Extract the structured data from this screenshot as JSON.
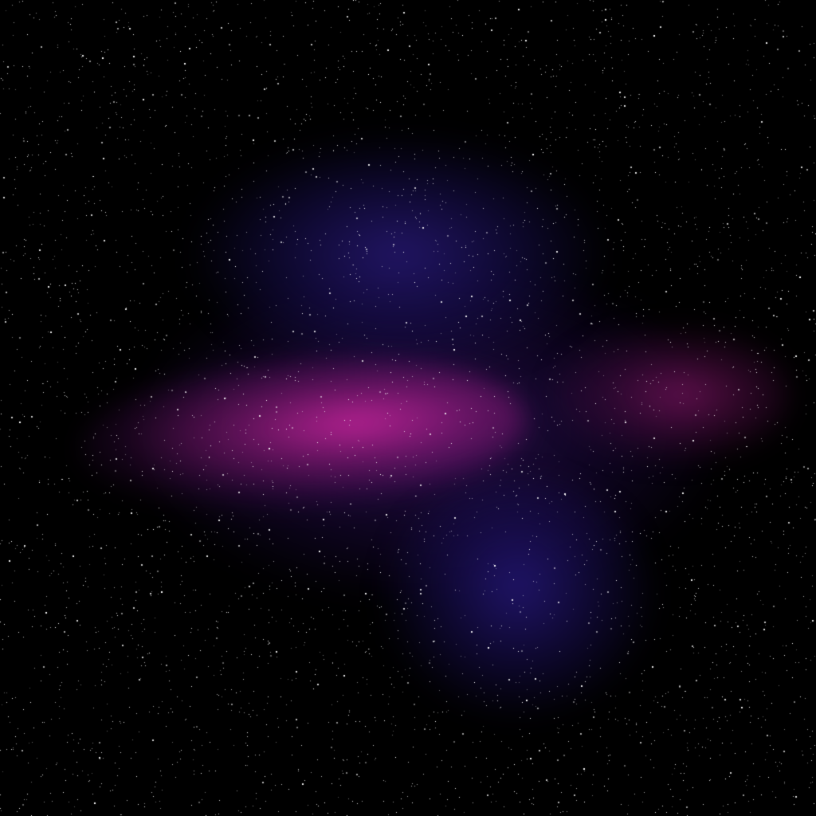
{
  "scene": {
    "background_color": "#000000",
    "nebula_colors": {
      "magenta": "#b8238f",
      "blue": "#24187a",
      "purple": "#32125f"
    },
    "star_color": "#ffffff",
    "star_count": 4500
  }
}
